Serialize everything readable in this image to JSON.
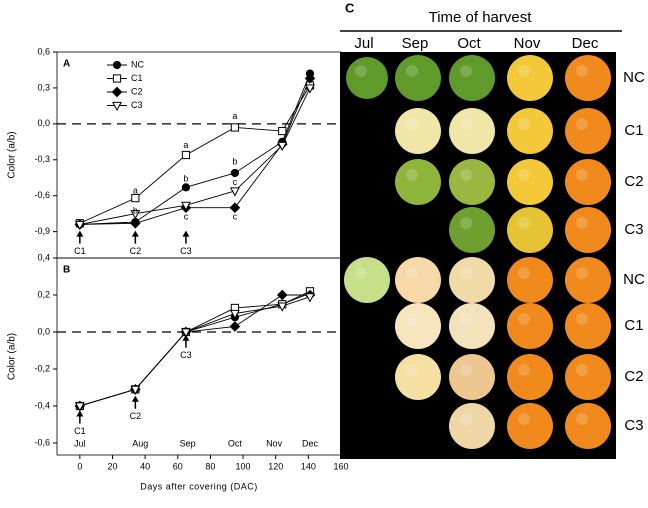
{
  "chart_data": [
    {
      "type": "line",
      "title": "A",
      "ylabel": "Color (a/b)",
      "x": [
        0,
        34,
        65,
        95,
        124,
        141
      ],
      "xlim": [
        -14,
        160
      ],
      "ylim": [
        -1.12,
        0.6
      ],
      "yticks": [
        {
          "value": 0.6,
          "label": "0,6"
        },
        {
          "value": 0.3,
          "label": "0,3"
        },
        {
          "value": 0.0,
          "label": "0,0"
        },
        {
          "value": -0.3,
          "label": "-0,3"
        },
        {
          "value": -0.6,
          "label": "-0,6"
        },
        {
          "value": -0.9,
          "label": "-0,9"
        }
      ],
      "reference_line": 0,
      "legend": "upper left",
      "series": [
        {
          "name": "NC",
          "color": "#000000",
          "marker": "circle-filled",
          "values": [
            -0.84,
            -0.82,
            -0.53,
            -0.41,
            -0.15,
            0.42
          ]
        },
        {
          "name": "C1",
          "color": "#000000",
          "marker": "square-open",
          "values": [
            -0.83,
            -0.62,
            -0.26,
            -0.03,
            -0.06,
            0.32
          ]
        },
        {
          "name": "C2",
          "color": "#000000",
          "marker": "diamond-filled",
          "values": [
            -0.84,
            -0.83,
            -0.7,
            -0.7,
            -0.17,
            0.38
          ]
        },
        {
          "name": "C3",
          "color": "#000000",
          "marker": "triangle-open",
          "values": [
            -0.84,
            -0.75,
            -0.68,
            -0.56,
            -0.18,
            0.3
          ]
        }
      ],
      "annotations": [
        {
          "text": "a",
          "x": 34,
          "y": -0.56
        },
        {
          "text": "b",
          "x": 34,
          "y": -0.73
        },
        {
          "text": "a",
          "x": 65,
          "y": -0.18
        },
        {
          "text": "b",
          "x": 65,
          "y": -0.46
        },
        {
          "text": "c",
          "x": 65,
          "y": -0.78
        },
        {
          "text": "a",
          "x": 95,
          "y": 0.06
        },
        {
          "text": "b",
          "x": 95,
          "y": -0.32
        },
        {
          "text": "c",
          "x": 95,
          "y": -0.49
        },
        {
          "text": "c",
          "x": 95,
          "y": -0.78
        }
      ],
      "arrows": [
        {
          "text": "C1",
          "x": 0,
          "y": -0.9
        },
        {
          "text": "C2",
          "x": 34,
          "y": -0.9
        },
        {
          "text": "C3",
          "x": 65,
          "y": -0.9
        }
      ]
    },
    {
      "type": "line",
      "title": "B",
      "ylabel": "Color (a/b)",
      "xlabel": "Days after covering (DAC)",
      "x": [
        0,
        34,
        65,
        95,
        124,
        141
      ],
      "xlim": [
        -14,
        160
      ],
      "xticks": [
        0,
        20,
        40,
        60,
        80,
        100,
        120,
        140,
        160
      ],
      "ylim": [
        -0.665,
        0.4
      ],
      "yticks": [
        {
          "value": 0.4,
          "label": "0,4"
        },
        {
          "value": 0.2,
          "label": "0,2"
        },
        {
          "value": 0.0,
          "label": "0,0"
        },
        {
          "value": -0.2,
          "label": "-0,2"
        },
        {
          "value": -0.4,
          "label": "-0,4"
        },
        {
          "value": -0.6,
          "label": "-0,6"
        }
      ],
      "reference_line": 0,
      "legend": false,
      "series": [
        {
          "name": "NC",
          "color": "#000000",
          "marker": "circle-filled",
          "values": [
            -0.4,
            -0.31,
            0.0,
            0.08,
            0.15,
            0.21
          ]
        },
        {
          "name": "C1",
          "color": "#000000",
          "marker": "square-open",
          "values": [
            -0.4,
            -0.31,
            0.0,
            0.13,
            0.15,
            0.22
          ]
        },
        {
          "name": "C2",
          "color": "#000000",
          "marker": "diamond-filled",
          "values": [
            -0.4,
            -0.31,
            0.0,
            0.03,
            0.2,
            0.2
          ]
        },
        {
          "name": "C3",
          "color": "#000000",
          "marker": "triangle-open",
          "values": [
            -0.4,
            -0.31,
            0.0,
            0.1,
            0.14,
            0.19
          ]
        }
      ],
      "arrows": [
        {
          "text": "C1",
          "x": 0,
          "y": -0.43
        },
        {
          "text": "C2",
          "x": 34,
          "y": -0.35
        },
        {
          "text": "C3",
          "x": 65,
          "y": -0.02
        }
      ],
      "month_labels": [
        {
          "text": "Jul",
          "x": 0
        },
        {
          "text": "Aug",
          "x": 37
        },
        {
          "text": "Sep",
          "x": 66
        },
        {
          "text": "Oct",
          "x": 95
        },
        {
          "text": "Nov",
          "x": 119
        },
        {
          "text": "Dec",
          "x": 141
        }
      ]
    }
  ],
  "panel_c": {
    "title": "C",
    "header": "Time of harvest",
    "columns": [
      "Jul",
      "Sep",
      "Oct",
      "Nov",
      "Dec"
    ],
    "rows": [
      "NC",
      "C1",
      "C2",
      "C3",
      "NC",
      "C1",
      "C2",
      "C3"
    ]
  }
}
